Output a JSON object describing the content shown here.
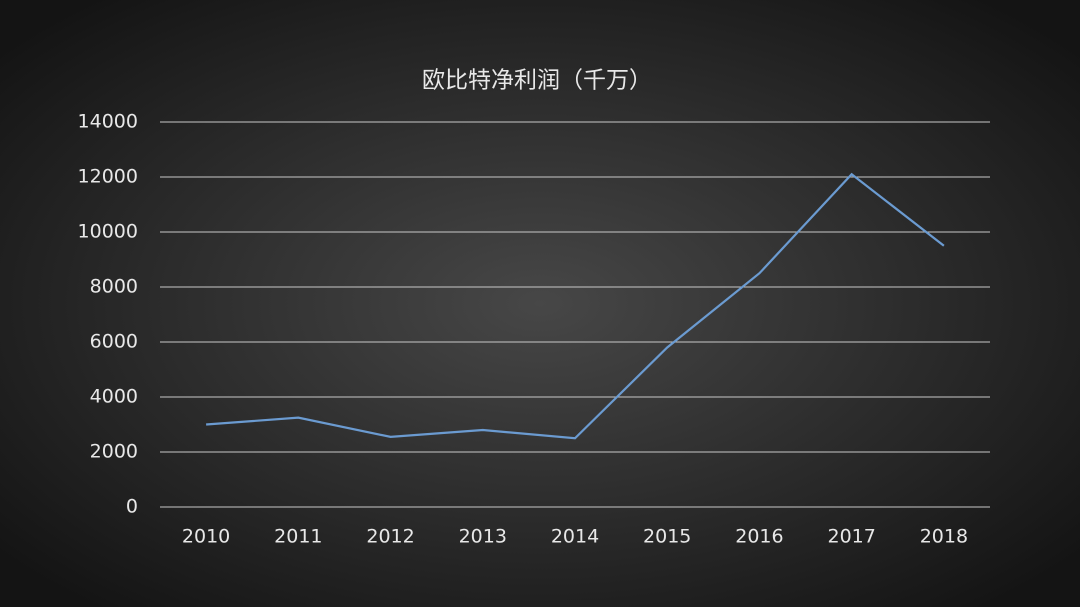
{
  "chart_data": {
    "type": "line",
    "title": "欧比特净利润（千万）",
    "categories": [
      "2010",
      "2011",
      "2012",
      "2013",
      "2014",
      "2015",
      "2016",
      "2017",
      "2018"
    ],
    "series": [
      {
        "color": "#6b9bd1",
        "values": [
          3000,
          3250,
          2550,
          2800,
          2500,
          5800,
          8500,
          12100,
          9500
        ]
      }
    ],
    "ylim": [
      0,
      14000
    ],
    "yticks": [
      0,
      2000,
      4000,
      6000,
      8000,
      10000,
      12000,
      14000
    ],
    "grid": true
  }
}
